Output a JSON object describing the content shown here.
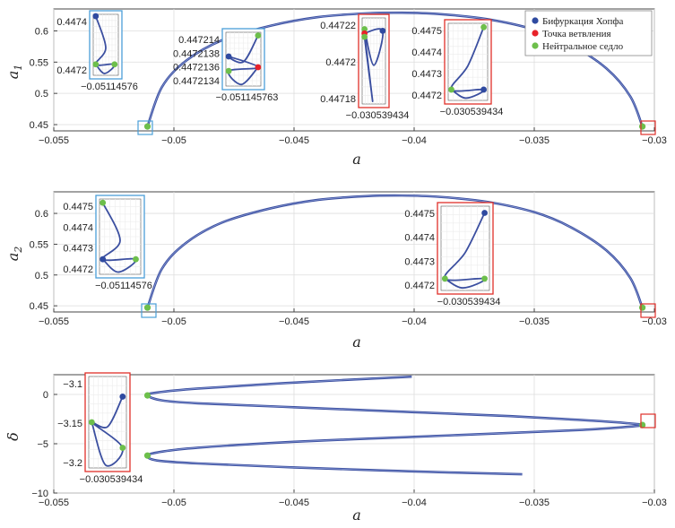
{
  "colors": {
    "curve": "#3b4fa0",
    "hopf": "#2f4aa0",
    "branch": "#e8222a",
    "saddle": "#6dbf4b",
    "box_blue": "#4a9fd8",
    "box_red": "#e0302a",
    "grid": "#dddddd"
  },
  "legend": {
    "placement": "top-right",
    "hopf": "Бифуркация Хопфа",
    "branch": "Точка ветвления",
    "saddle": "Нейтральное седло"
  },
  "chart_data": [
    {
      "id": "a1",
      "type": "line",
      "xlabel": "a",
      "ylabel": "a",
      "ylabel_sub": "1",
      "xlim": [
        -0.055,
        -0.03
      ],
      "ylim": [
        0.44,
        0.635
      ],
      "xticks": [
        -0.055,
        -0.05,
        -0.045,
        -0.04,
        -0.035,
        -0.03
      ],
      "xtick_labels": [
        "−0.055",
        "−0.05",
        "−0.045",
        "−0.04",
        "−0.035",
        "−0.03"
      ],
      "yticks": [
        0.45,
        0.5,
        0.55,
        0.6
      ],
      "ytick_labels": [
        "0.45",
        "0.5",
        "0.55",
        "0.6"
      ],
      "grid": true,
      "series": [
        {
          "x": [
            -0.0511,
            -0.0505,
            -0.0495,
            -0.048,
            -0.046,
            -0.044,
            -0.042,
            -0.0405,
            -0.039,
            -0.037,
            -0.035,
            -0.0335,
            -0.032,
            -0.031,
            -0.0305
          ],
          "y": [
            0.447,
            0.51,
            0.552,
            0.585,
            0.608,
            0.622,
            0.628,
            0.629,
            0.627,
            0.619,
            0.602,
            0.578,
            0.54,
            0.495,
            0.447
          ]
        }
      ],
      "points": [
        {
          "x": -0.0511,
          "y": 0.447,
          "kind": "saddle"
        },
        {
          "x": -0.0305,
          "y": 0.447,
          "kind": "saddle"
        }
      ],
      "markers": [
        {
          "x": -0.0511,
          "y": 0.447,
          "color": "blue"
        },
        {
          "x": -0.0305,
          "y": 0.447,
          "color": "red"
        }
      ],
      "insets": [
        {
          "color": "blue",
          "xlabel": "−0.05114576",
          "ytick_labels": [
            "0.4474",
            "0.4472"
          ],
          "points": [
            [
              "hopf",
              0.1,
              0.03
            ],
            [
              "saddle",
              0.1,
              0.82
            ],
            [
              "saddle",
              0.85,
              0.82
            ]
          ]
        },
        {
          "color": "blue",
          "xlabel": "−0.051145763",
          "ytick_labels": [
            "0.447214",
            "0.4472138",
            "0.4472136",
            "0.4472134"
          ],
          "points": [
            [
              "saddle",
              0.92,
              0.06
            ],
            [
              "hopf",
              0.08,
              0.45
            ],
            [
              "branch",
              0.92,
              0.65
            ],
            [
              "saddle",
              0.08,
              0.72
            ]
          ]
        },
        {
          "color": "red",
          "xlabel": "−0.030539434",
          "ytick_labels": [
            "0.44722",
            "0.4472",
            "0.44718"
          ],
          "points": [
            [
              "saddle",
              0.1,
              0.13
            ],
            [
              "branch",
              0.1,
              0.18
            ],
            [
              "saddle",
              0.1,
              0.22
            ],
            [
              "hopf",
              0.88,
              0.15
            ]
          ]
        },
        {
          "color": "red",
          "xlabel": "−0.030539434",
          "ytick_labels": [
            "0.4475",
            "0.4474",
            "0.4473",
            "0.4472"
          ],
          "points": [
            [
              "saddle",
              0.9,
              0.05
            ],
            [
              "saddle",
              0.08,
              0.86
            ],
            [
              "hopf",
              0.9,
              0.86
            ]
          ]
        }
      ]
    },
    {
      "id": "a2",
      "type": "line",
      "xlabel": "a",
      "ylabel": "a",
      "ylabel_sub": "2",
      "xlim": [
        -0.055,
        -0.03
      ],
      "ylim": [
        0.44,
        0.635
      ],
      "xticks": [
        -0.055,
        -0.05,
        -0.045,
        -0.04,
        -0.035,
        -0.03
      ],
      "xtick_labels": [
        "−0.055",
        "−0.05",
        "−0.045",
        "−0.04",
        "−0.035",
        "−0.03"
      ],
      "yticks": [
        0.45,
        0.5,
        0.55,
        0.6
      ],
      "ytick_labels": [
        "0.45",
        "0.5",
        "0.55",
        "0.6"
      ],
      "grid": true,
      "series": [
        {
          "x": [
            -0.0511,
            -0.0505,
            -0.0495,
            -0.048,
            -0.046,
            -0.044,
            -0.042,
            -0.0405,
            -0.039,
            -0.037,
            -0.035,
            -0.0335,
            -0.032,
            -0.031,
            -0.0305
          ],
          "y": [
            0.447,
            0.51,
            0.552,
            0.585,
            0.608,
            0.622,
            0.628,
            0.629,
            0.627,
            0.619,
            0.602,
            0.578,
            0.54,
            0.495,
            0.447
          ]
        }
      ],
      "points": [
        {
          "x": -0.0511,
          "y": 0.447,
          "kind": "saddle"
        },
        {
          "x": -0.0305,
          "y": 0.447,
          "kind": "saddle"
        }
      ],
      "markers": [
        {
          "x": -0.0511,
          "y": 0.447,
          "color": "blue"
        },
        {
          "x": -0.0305,
          "y": 0.447,
          "color": "red"
        }
      ],
      "insets": [
        {
          "color": "blue",
          "xlabel": "−0.05114576",
          "ytick_labels": [
            "0.4475",
            "0.4474",
            "0.4473",
            "0.4472"
          ],
          "points": [
            [
              "saddle",
              0.08,
              0.05
            ],
            [
              "hopf",
              0.08,
              0.8
            ],
            [
              "saddle",
              0.88,
              0.8
            ]
          ]
        },
        {
          "color": "red",
          "xlabel": "−0.030539434",
          "ytick_labels": [
            "0.4475",
            "0.4474",
            "0.4473",
            "0.4472"
          ],
          "points": [
            [
              "hopf",
              0.9,
              0.08
            ],
            [
              "saddle",
              0.08,
              0.86
            ],
            [
              "saddle",
              0.9,
              0.86
            ]
          ]
        }
      ]
    },
    {
      "id": "delta",
      "type": "line",
      "xlabel": "a",
      "ylabel": "δ",
      "ylabel_sub": "",
      "xlim": [
        -0.055,
        -0.03
      ],
      "ylim": [
        -10,
        2
      ],
      "xticks": [
        -0.055,
        -0.05,
        -0.045,
        -0.04,
        -0.035,
        -0.03
      ],
      "xtick_labels": [
        "−0.055",
        "−0.05",
        "−0.045",
        "−0.04",
        "−0.035",
        "−0.03"
      ],
      "yticks": [
        0,
        -5,
        -10
      ],
      "ytick_labels": [
        "0",
        "−5",
        "−10"
      ],
      "grid": true,
      "series": [
        {
          "x": [
            -0.0401,
            -0.045,
            -0.049,
            -0.0507,
            -0.0511,
            -0.0505,
            -0.049,
            -0.045,
            -0.04,
            -0.036,
            -0.033,
            -0.0312,
            -0.0305,
            -0.0312,
            -0.033,
            -0.036,
            -0.04,
            -0.045,
            -0.049,
            -0.0505,
            -0.0511,
            -0.0507,
            -0.049,
            -0.045,
            -0.0401,
            -0.0355
          ],
          "y": [
            1.8,
            1.2,
            0.6,
            0.2,
            -0.1,
            -0.6,
            -0.9,
            -1.3,
            -1.8,
            -2.2,
            -2.6,
            -2.9,
            -3.1,
            -3.3,
            -3.6,
            -3.9,
            -4.3,
            -4.8,
            -5.4,
            -5.8,
            -6.2,
            -6.7,
            -7.0,
            -7.4,
            -7.8,
            -8.1
          ]
        }
      ],
      "points": [
        {
          "x": -0.0511,
          "y": -0.1,
          "kind": "saddle"
        },
        {
          "x": -0.0305,
          "y": -3.1,
          "kind": "saddle"
        },
        {
          "x": -0.0511,
          "y": -6.2,
          "kind": "saddle"
        }
      ],
      "markers": [
        {
          "x": -0.0305,
          "y": -3.1,
          "color": "red"
        }
      ],
      "insets": [
        {
          "color": "red",
          "xlabel": "−0.030539434",
          "ytick_labels": [
            "−3.1",
            "−3.15",
            "−3.2"
          ],
          "points": [
            [
              "hopf",
              0.9,
              0.22
            ],
            [
              "saddle",
              0.08,
              0.5
            ],
            [
              "saddle",
              0.9,
              0.78
            ]
          ]
        }
      ]
    }
  ]
}
